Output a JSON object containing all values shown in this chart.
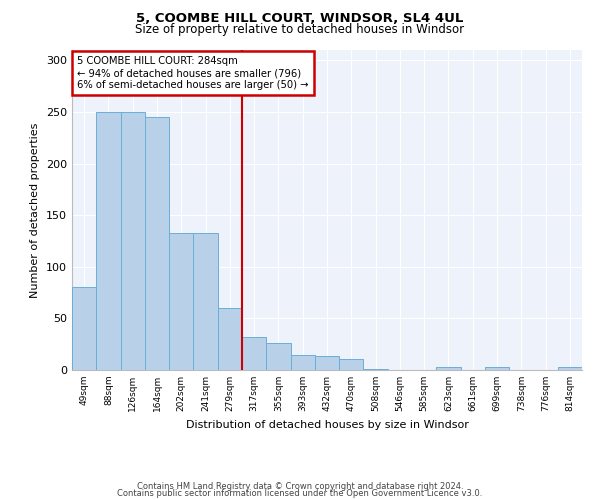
{
  "title_line1": "5, COOMBE HILL COURT, WINDSOR, SL4 4UL",
  "title_line2": "Size of property relative to detached houses in Windsor",
  "xlabel": "Distribution of detached houses by size in Windsor",
  "ylabel": "Number of detached properties",
  "categories": [
    "49sqm",
    "88sqm",
    "126sqm",
    "164sqm",
    "202sqm",
    "241sqm",
    "279sqm",
    "317sqm",
    "355sqm",
    "393sqm",
    "432sqm",
    "470sqm",
    "508sqm",
    "546sqm",
    "585sqm",
    "623sqm",
    "661sqm",
    "699sqm",
    "738sqm",
    "776sqm",
    "814sqm"
  ],
  "values": [
    80,
    250,
    250,
    245,
    133,
    133,
    60,
    32,
    26,
    15,
    14,
    11,
    1,
    0,
    0,
    3,
    0,
    3,
    0,
    0,
    3
  ],
  "bar_color": "#b8d0e8",
  "bar_edge_color": "#6aaed6",
  "annotation_text": "5 COOMBE HILL COURT: 284sqm\n← 94% of detached houses are smaller (796)\n6% of semi-detached houses are larger (50) →",
  "annotation_box_color": "#ffffff",
  "annotation_box_edge_color": "#cc0000",
  "vline_x_index": 6,
  "vline_color": "#cc0000",
  "ylim": [
    0,
    310
  ],
  "yticks": [
    0,
    50,
    100,
    150,
    200,
    250,
    300
  ],
  "background_color": "#eef2fa",
  "footer_line1": "Contains HM Land Registry data © Crown copyright and database right 2024.",
  "footer_line2": "Contains public sector information licensed under the Open Government Licence v3.0."
}
